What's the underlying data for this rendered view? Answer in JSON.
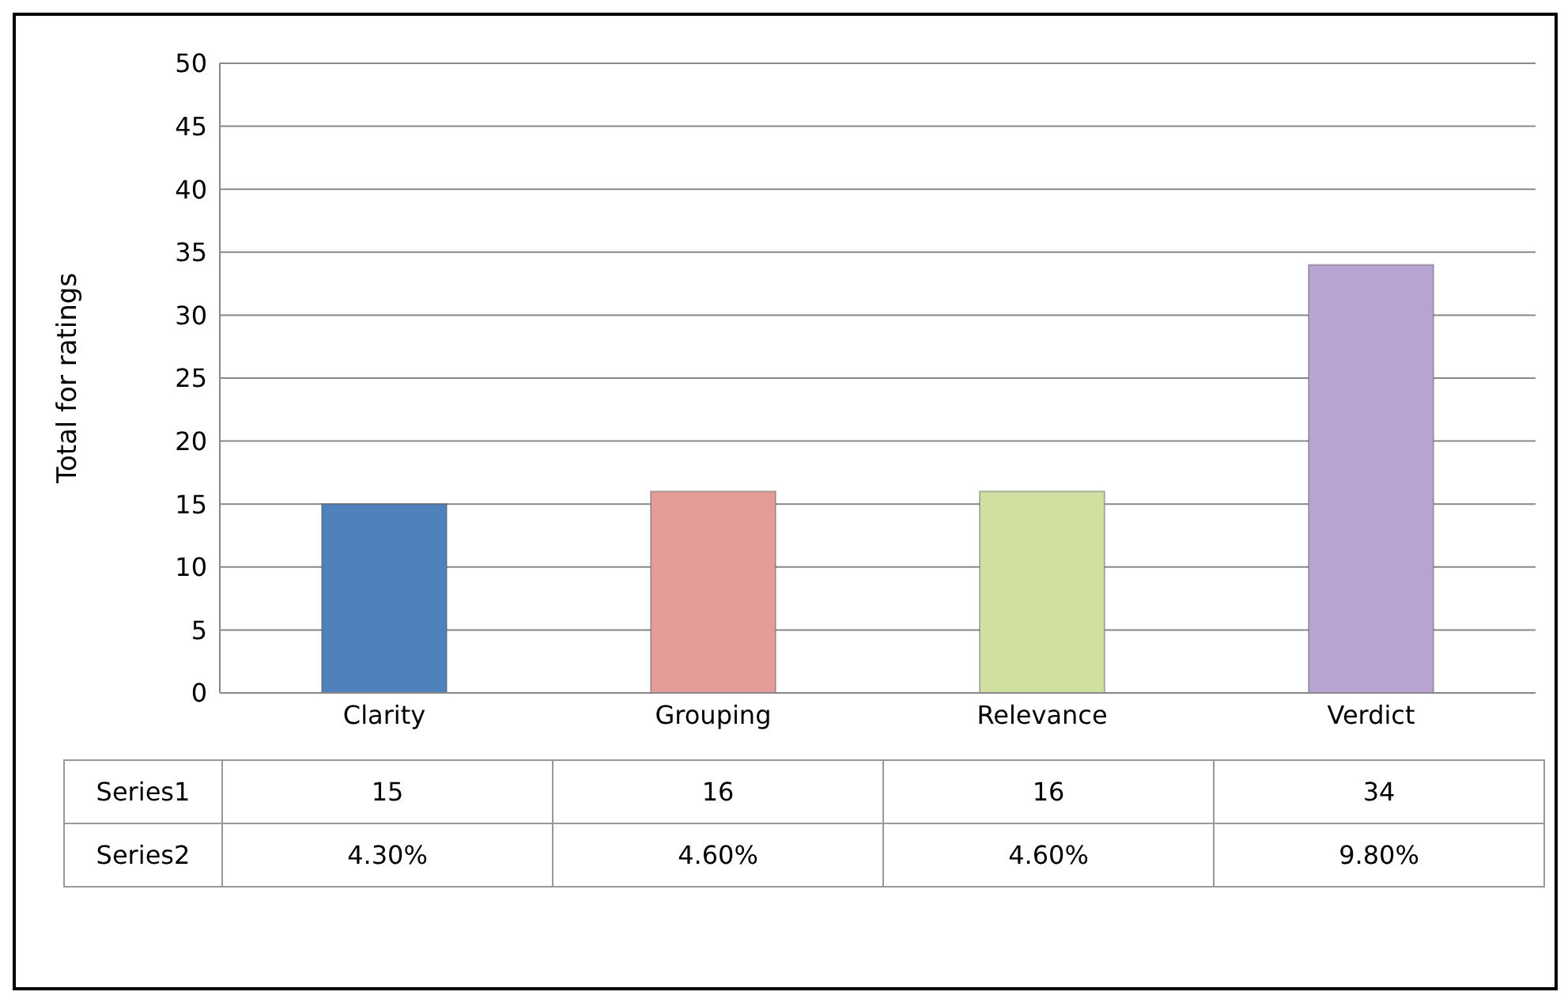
{
  "chart_data": {
    "type": "bar",
    "ylabel": "Total for ratings",
    "categories": [
      "Clarity",
      "Grouping",
      "Relevance",
      "Verdict"
    ],
    "series": [
      {
        "name": "Series1",
        "colors": [
          "#4f81bd",
          "#e39c98",
          "#cfe0a0",
          "#b7a4d2"
        ],
        "values": [
          15,
          16,
          16,
          34
        ]
      }
    ],
    "data_labels": true,
    "ylim": [
      0,
      50
    ],
    "yticks": [
      0,
      5,
      10,
      15,
      20,
      25,
      30,
      35,
      40,
      45,
      50
    ],
    "grid": "y",
    "annotations": [
      "Series2",
      "4.30%",
      "4.60%",
      "4.60%",
      "9.80%"
    ]
  }
}
